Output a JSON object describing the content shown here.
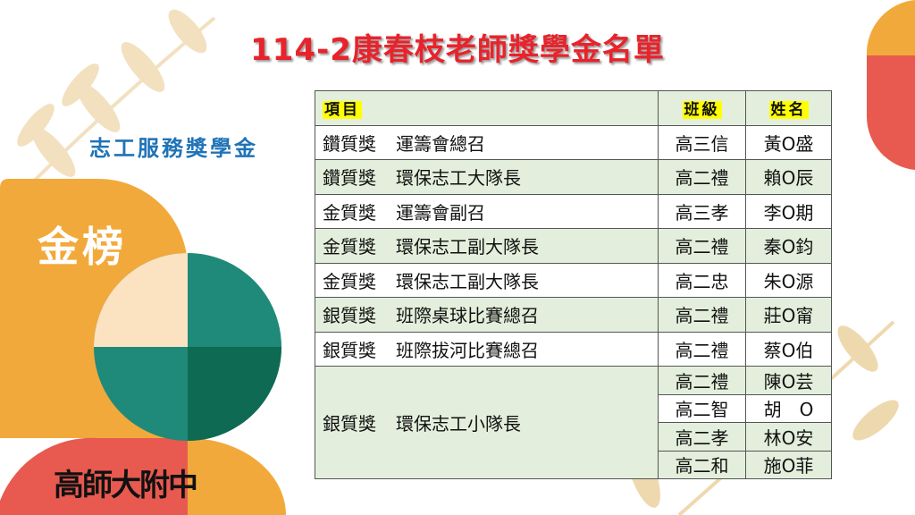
{
  "title": "114-2康春枝老師獎學金名單",
  "subtitle": "志工服務獎學金",
  "badge": "金榜",
  "logo_text": "高師大附中",
  "table": {
    "headers": [
      "項目",
      "班級",
      "姓名"
    ],
    "rows": [
      {
        "award": "鑽質獎",
        "role": "運籌會總召",
        "class": "高三信",
        "name": "黃O盛"
      },
      {
        "award": "鑽質獎",
        "role": "環保志工大隊長",
        "class": "高二禮",
        "name": "賴O辰"
      },
      {
        "award": "金質獎",
        "role": "運籌會副召",
        "class": "高三孝",
        "name": "李O期"
      },
      {
        "award": "金質獎",
        "role": "環保志工副大隊長",
        "class": "高二禮",
        "name": "秦O鈞"
      },
      {
        "award": "金質獎",
        "role": "環保志工副大隊長",
        "class": "高二忠",
        "name": "朱O源"
      },
      {
        "award": "銀質獎",
        "role": "班際桌球比賽總召",
        "class": "高二禮",
        "name": "莊O甯"
      },
      {
        "award": "銀質獎",
        "role": "班際拔河比賽總召",
        "class": "高二禮",
        "name": "蔡O伯"
      }
    ],
    "group": {
      "award": "銀質獎",
      "role": "環保志工小隊長",
      "members": [
        {
          "class": "高二禮",
          "name": "陳O芸"
        },
        {
          "class": "高二智",
          "name": "胡　O"
        },
        {
          "class": "高二孝",
          "name": "林O安"
        },
        {
          "class": "高二和",
          "name": "施O菲"
        }
      ]
    }
  },
  "colors": {
    "title": "#e8232b",
    "subtitle": "#1f73b7",
    "orange": "#f2a93b",
    "teal": "#1f8a7a",
    "coral": "#e85a4f",
    "row_green": "#e3efdc"
  }
}
